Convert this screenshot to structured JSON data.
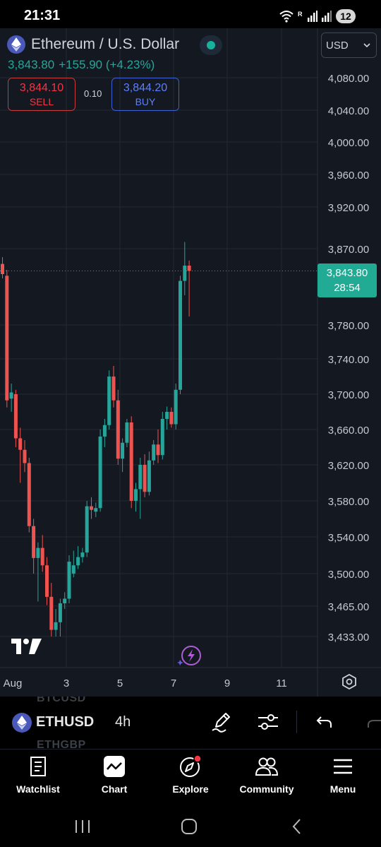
{
  "status_bar": {
    "time": "21:31",
    "notification_count": "12"
  },
  "header": {
    "title": "Ethereum / U.S. Dollar",
    "last_price": "3,843.80",
    "change": "+155.90 (+4.23%)",
    "sell_price": "3,844.10",
    "sell_label": "SELL",
    "spread": "0.10",
    "buy_price": "3,844.20",
    "buy_label": "BUY",
    "currency": "USD"
  },
  "price_tag": {
    "price": "3,843.80",
    "countdown": "28:54"
  },
  "colors": {
    "up": "#26a69a",
    "down": "#ef5350",
    "background": "#141821",
    "grid": "#232733"
  },
  "chart_data": {
    "type": "candlestick",
    "symbol": "ETHUSD",
    "interval": "4h",
    "y_ticks": [
      4080,
      4040,
      4000,
      3960,
      3920,
      3870,
      3780,
      3740,
      3700,
      3660,
      3620,
      3580,
      3540,
      3500,
      3465,
      3433
    ],
    "y_tick_labels": [
      "4,080.00",
      "4,040.00",
      "4,000.00",
      "3,960.00",
      "3,920.00",
      "3,870.00",
      "3,780.00",
      "3,740.00",
      "3,700.00",
      "3,660.00",
      "3,620.00",
      "3,580.00",
      "3,540.00",
      "3,500.00",
      "3,465.00",
      "3,433.00"
    ],
    "x_tick_labels": [
      "Aug",
      "3",
      "5",
      "7",
      "9",
      "11"
    ],
    "candles": [
      {
        "o": 3852,
        "h": 3860,
        "l": 3835,
        "c": 3840
      },
      {
        "o": 3838,
        "h": 3845,
        "l": 3685,
        "c": 3693
      },
      {
        "o": 3695,
        "h": 3712,
        "l": 3680,
        "c": 3702
      },
      {
        "o": 3700,
        "h": 3705,
        "l": 3640,
        "c": 3650
      },
      {
        "o": 3650,
        "h": 3662,
        "l": 3600,
        "c": 3637
      },
      {
        "o": 3637,
        "h": 3648,
        "l": 3612,
        "c": 3622
      },
      {
        "o": 3622,
        "h": 3628,
        "l": 3545,
        "c": 3552
      },
      {
        "o": 3552,
        "h": 3560,
        "l": 3500,
        "c": 3517
      },
      {
        "o": 3517,
        "h": 3534,
        "l": 3470,
        "c": 3528
      },
      {
        "o": 3528,
        "h": 3542,
        "l": 3502,
        "c": 3509
      },
      {
        "o": 3509,
        "h": 3518,
        "l": 3466,
        "c": 3475
      },
      {
        "o": 3475,
        "h": 3490,
        "l": 3433,
        "c": 3440
      },
      {
        "o": 3440,
        "h": 3462,
        "l": 3433,
        "c": 3448
      },
      {
        "o": 3448,
        "h": 3473,
        "l": 3433,
        "c": 3468
      },
      {
        "o": 3468,
        "h": 3480,
        "l": 3462,
        "c": 3473
      },
      {
        "o": 3473,
        "h": 3520,
        "l": 3468,
        "c": 3513
      },
      {
        "o": 3500,
        "h": 3525,
        "l": 3496,
        "c": 3509
      },
      {
        "o": 3509,
        "h": 3530,
        "l": 3505,
        "c": 3518
      },
      {
        "o": 3518,
        "h": 3528,
        "l": 3512,
        "c": 3523
      },
      {
        "o": 3523,
        "h": 3580,
        "l": 3518,
        "c": 3574
      },
      {
        "o": 3574,
        "h": 3584,
        "l": 3560,
        "c": 3570
      },
      {
        "o": 3568,
        "h": 3578,
        "l": 3562,
        "c": 3572
      },
      {
        "o": 3572,
        "h": 3660,
        "l": 3568,
        "c": 3652
      },
      {
        "o": 3652,
        "h": 3672,
        "l": 3640,
        "c": 3665
      },
      {
        "o": 3665,
        "h": 3727,
        "l": 3660,
        "c": 3720
      },
      {
        "o": 3720,
        "h": 3732,
        "l": 3685,
        "c": 3693
      },
      {
        "o": 3693,
        "h": 3705,
        "l": 3620,
        "c": 3627
      },
      {
        "o": 3627,
        "h": 3650,
        "l": 3612,
        "c": 3645
      },
      {
        "o": 3645,
        "h": 3672,
        "l": 3640,
        "c": 3668
      },
      {
        "o": 3668,
        "h": 3675,
        "l": 3572,
        "c": 3580
      },
      {
        "o": 3580,
        "h": 3600,
        "l": 3568,
        "c": 3593
      },
      {
        "o": 3593,
        "h": 3628,
        "l": 3560,
        "c": 3620
      },
      {
        "o": 3620,
        "h": 3632,
        "l": 3584,
        "c": 3590
      },
      {
        "o": 3590,
        "h": 3635,
        "l": 3586,
        "c": 3625
      },
      {
        "o": 3625,
        "h": 3648,
        "l": 3620,
        "c": 3643
      },
      {
        "o": 3643,
        "h": 3660,
        "l": 3622,
        "c": 3631
      },
      {
        "o": 3631,
        "h": 3680,
        "l": 3626,
        "c": 3672
      },
      {
        "o": 3672,
        "h": 3686,
        "l": 3660,
        "c": 3680
      },
      {
        "o": 3680,
        "h": 3685,
        "l": 3662,
        "c": 3666
      },
      {
        "o": 3666,
        "h": 3712,
        "l": 3660,
        "c": 3705
      },
      {
        "o": 3705,
        "h": 3838,
        "l": 3700,
        "c": 3832
      },
      {
        "o": 3832,
        "h": 3878,
        "l": 3815,
        "c": 3850
      },
      {
        "o": 3850,
        "h": 3856,
        "l": 3790,
        "c": 3843.8
      }
    ],
    "last_price": 3843.8
  },
  "symbol_bar": {
    "prev_symbol": "BTCUSD",
    "ticker": "ETHUSD",
    "interval": "4h",
    "next_symbol": "ETHGBP"
  },
  "nav": {
    "watchlist": "Watchlist",
    "chart": "Chart",
    "explore": "Explore",
    "community": "Community",
    "menu": "Menu"
  }
}
